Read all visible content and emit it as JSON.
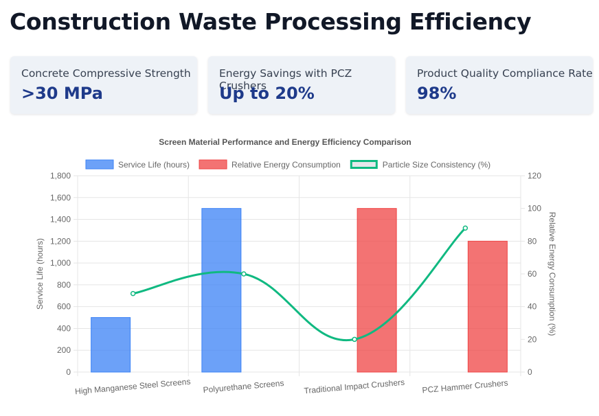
{
  "page": {
    "title": "Construction Waste Processing Efficiency"
  },
  "cards": [
    {
      "label": "Concrete Compressive Strength",
      "value": ">30 MPa"
    },
    {
      "label": "Energy Savings with PCZ Crushers",
      "value": "Up to 20%"
    },
    {
      "label": "Product Quality Compliance Rate",
      "value": "98%"
    }
  ],
  "colors": {
    "service_life": "#3b82f6",
    "energy": "#ef4444",
    "particle": "#10b981",
    "card_value": "#1e3a8a"
  },
  "chart_data": {
    "type": "bar",
    "title": "Screen Material Performance and Energy Efficiency Comparison",
    "categories": [
      "High Manganese Steel Screens",
      "Polyurethane Screens",
      "Traditional Impact Crushers",
      "PCZ Hammer Crushers"
    ],
    "series": [
      {
        "name": "Service Life (hours)",
        "type": "bar",
        "axis": "left",
        "values": [
          500,
          1500,
          null,
          null
        ]
      },
      {
        "name": "Relative Energy Consumption",
        "type": "bar",
        "axis": "right",
        "values": [
          null,
          null,
          100,
          80
        ]
      },
      {
        "name": "Particle Size Consistency (%)",
        "type": "line",
        "axis": "right",
        "values": [
          48,
          60,
          20,
          88
        ]
      }
    ],
    "y_left": {
      "label": "Service Life (hours)",
      "range": [
        0,
        1800
      ],
      "ticks": [
        "0",
        "200",
        "400",
        "600",
        "800",
        "1,000",
        "1,200",
        "1,400",
        "1,600",
        "1,800"
      ]
    },
    "y_right": {
      "label": "Relative Energy Consumption (%)",
      "range": [
        0,
        120
      ],
      "ticks": [
        "0",
        "20",
        "40",
        "60",
        "80",
        "100",
        "120"
      ]
    },
    "grid": true,
    "legend": "top"
  }
}
